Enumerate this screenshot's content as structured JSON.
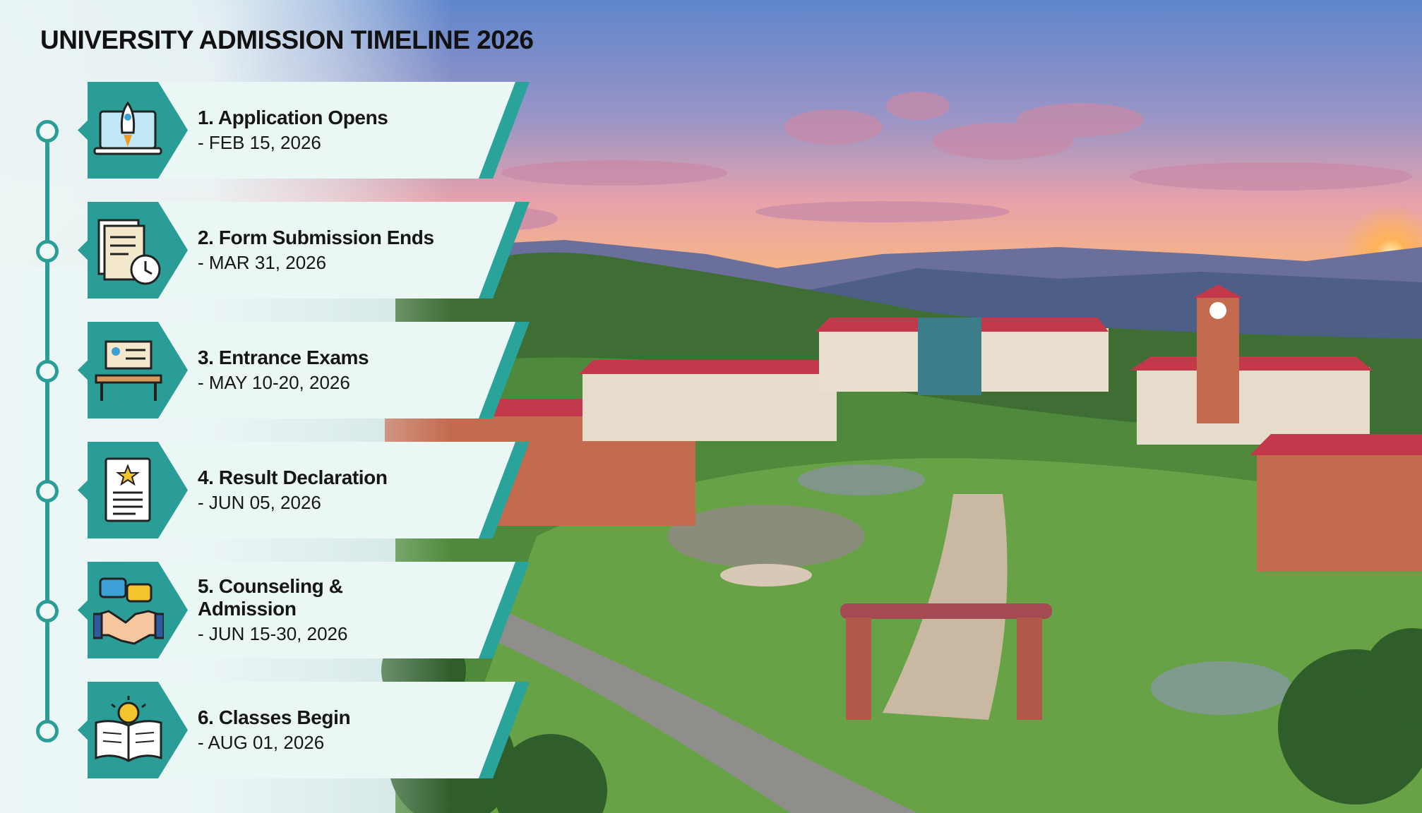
{
  "title": "UNIVERSITY ADMISSION TIMELINE 2026",
  "items": [
    {
      "title": "1. Application Opens",
      "date": "- FEB 15, 2026"
    },
    {
      "title": "2. Form Submission Ends",
      "date": "- MAR 31, 2026"
    },
    {
      "title": "3. Entrance Exams",
      "date": "- MAY 10-20, 2026"
    },
    {
      "title": "4. Result Declaration",
      "date": "- JUN 05, 2026"
    },
    {
      "title": "5. Counseling & Admission",
      "date": "- JUN 15-30, 2026"
    },
    {
      "title": "6. Classes Begin",
      "date": "- AUG 01, 2026"
    }
  ]
}
